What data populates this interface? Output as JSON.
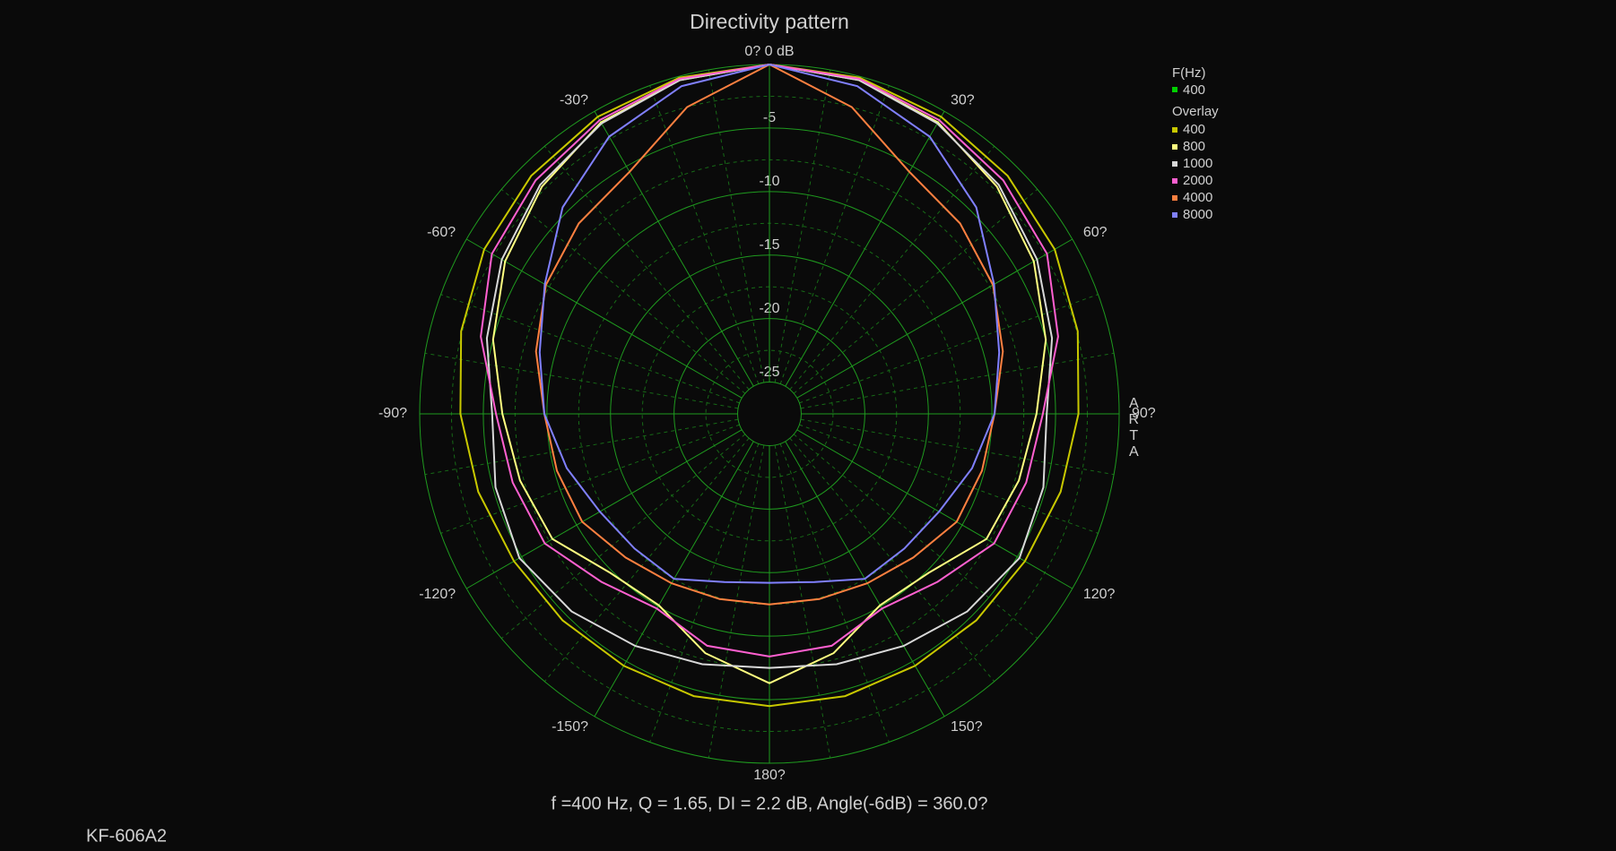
{
  "chart_data": {
    "type": "polar",
    "title": "Directivity pattern",
    "footer": "f =400 Hz,  Q =  1.65,  DI =   2.2 dB, Angle(-6dB) = 360.0?",
    "model": "KF-606A2",
    "brand": "ARTA",
    "legend_title": "F(Hz)",
    "current": {
      "name": "400",
      "color": "#00d000"
    },
    "overlay_title": "Overlay",
    "rlim": [
      -27.5,
      0
    ],
    "rticks": [
      0,
      -5,
      -10,
      -15,
      -20,
      -25
    ],
    "rminorticks": [
      -2.5,
      -7.5,
      -12.5,
      -17.5,
      -22.5
    ],
    "angle_ticks": [
      {
        "value": 0,
        "label": "0? 0 dB"
      },
      {
        "value": 30,
        "label": "30?"
      },
      {
        "value": 60,
        "label": "60?"
      },
      {
        "value": 90,
        "label": "90?"
      },
      {
        "value": 120,
        "label": "120?"
      },
      {
        "value": 150,
        "label": "150?"
      },
      {
        "value": 180,
        "label": "180?"
      },
      {
        "value": -150,
        "label": "-150?"
      },
      {
        "value": -120,
        "label": "-120?"
      },
      {
        "value": -90,
        "label": "-90?"
      },
      {
        "value": -60,
        "label": "-60?"
      },
      {
        "value": -30,
        "label": "-30?"
      }
    ],
    "angle_minor_ticks": [
      10,
      20,
      40,
      50,
      70,
      80,
      100,
      110,
      130,
      140,
      160,
      170,
      190,
      200,
      220,
      230,
      250,
      260,
      280,
      290,
      310,
      320,
      340,
      350
    ],
    "angles": [
      0,
      15,
      30,
      45,
      60,
      75,
      90,
      105,
      120,
      135,
      150,
      165,
      180,
      195,
      210,
      225,
      240,
      255,
      270,
      285,
      300,
      315,
      330,
      345
    ],
    "series": [
      {
        "name": "400",
        "color": "#c8c800",
        "values": [
          0,
          -0.1,
          -0.5,
          -1.0,
          -1.6,
          -2.4,
          -3.2,
          -3.8,
          -4.3,
          -4.5,
          -4.6,
          -4.5,
          -4.5,
          -4.5,
          -4.6,
          -4.5,
          -4.3,
          -3.8,
          -3.2,
          -2.4,
          -1.6,
          -1.0,
          -0.5,
          -0.1
        ]
      },
      {
        "name": "800",
        "color": "#ffff80",
        "values": [
          0,
          -0.3,
          -1.0,
          -2.2,
          -3.5,
          -5.0,
          -6.5,
          -7.2,
          -7.8,
          -9.8,
          -10.1,
          -8.0,
          -6.3,
          -8.0,
          -10.1,
          -9.8,
          -7.8,
          -7.2,
          -6.5,
          -5.0,
          -3.5,
          -2.2,
          -1.0,
          -0.3
        ]
      },
      {
        "name": "1000",
        "color": "#d8d8d8",
        "values": [
          0,
          -0.3,
          -1.1,
          -2.0,
          -3.2,
          -4.5,
          -5.7,
          -5.2,
          -4.8,
          -5.5,
          -6.4,
          -7.1,
          -7.5,
          -7.1,
          -6.4,
          -5.5,
          -4.8,
          -5.2,
          -5.7,
          -4.5,
          -3.2,
          -2.0,
          -1.1,
          -0.3
        ]
      },
      {
        "name": "2000",
        "color": "#ff60d0",
        "values": [
          0,
          -0.2,
          -0.8,
          -1.5,
          -2.3,
          -4.0,
          -6.0,
          -6.6,
          -7.1,
          -8.8,
          -9.8,
          -8.6,
          -8.4,
          -8.6,
          -9.8,
          -8.8,
          -7.1,
          -6.6,
          -6.0,
          -4.0,
          -2.3,
          -1.5,
          -0.8,
          -0.2
        ]
      },
      {
        "name": "4000",
        "color": "#ff8040",
        "values": [
          0,
          -2.5,
          -5.5,
          -6.3,
          -7.2,
          -8.5,
          -9.8,
          -10.2,
          -10.5,
          -11.5,
          -12.1,
          -12.4,
          -12.5,
          -12.4,
          -12.1,
          -11.5,
          -10.5,
          -10.2,
          -9.8,
          -8.5,
          -7.2,
          -6.3,
          -5.5,
          -2.5
        ]
      },
      {
        "name": "8000",
        "color": "#8080ff",
        "values": [
          0,
          -0.8,
          -2.3,
          -4.5,
          -7.1,
          -8.8,
          -9.8,
          -11.0,
          -12.1,
          -12.5,
          -12.5,
          -13.8,
          -14.2,
          -13.8,
          -12.5,
          -12.5,
          -12.1,
          -11.0,
          -9.8,
          -8.8,
          -7.1,
          -4.5,
          -2.3,
          -0.8
        ]
      }
    ]
  }
}
